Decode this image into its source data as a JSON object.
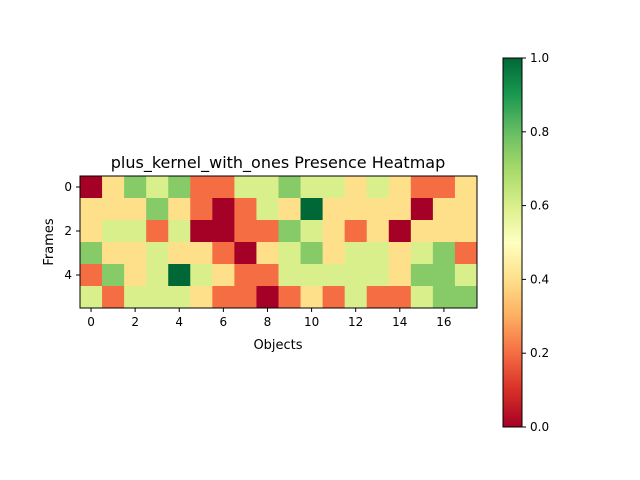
{
  "chart_data": {
    "type": "heatmap",
    "title": "plus_kernel_with_ones Presence Heatmap",
    "xlabel": "Objects",
    "ylabel": "Frames",
    "colormap": "RdYlGn",
    "x_ticks": [
      0,
      2,
      4,
      6,
      8,
      10,
      12,
      14,
      16
    ],
    "y_ticks": [
      0,
      2,
      4
    ],
    "colorbar": {
      "min": 0.0,
      "max": 1.0,
      "ticks": [
        "0.0",
        "0.2",
        "0.4",
        "0.6",
        "0.8",
        "1.0"
      ]
    },
    "values": [
      [
        0.0,
        0.4,
        0.75,
        0.6,
        0.75,
        0.2,
        0.2,
        0.6,
        0.6,
        0.75,
        0.6,
        0.6,
        0.4,
        0.6,
        0.4,
        0.2,
        0.2,
        0.4
      ],
      [
        0.4,
        0.4,
        0.4,
        0.75,
        0.4,
        0.2,
        0.0,
        0.2,
        0.6,
        0.4,
        1.0,
        0.4,
        0.4,
        0.4,
        0.4,
        0.0,
        0.4,
        0.4
      ],
      [
        0.4,
        0.6,
        0.6,
        0.2,
        0.6,
        0.0,
        0.0,
        0.2,
        0.2,
        0.75,
        0.6,
        0.4,
        0.2,
        0.4,
        0.0,
        0.4,
        0.4,
        0.4
      ],
      [
        0.75,
        0.4,
        0.4,
        0.6,
        0.4,
        0.4,
        0.2,
        0.0,
        0.4,
        0.6,
        0.75,
        0.4,
        0.6,
        0.6,
        0.4,
        0.6,
        0.75,
        0.2
      ],
      [
        0.2,
        0.75,
        0.4,
        0.6,
        1.0,
        0.6,
        0.4,
        0.2,
        0.2,
        0.6,
        0.6,
        0.6,
        0.6,
        0.6,
        0.4,
        0.75,
        0.75,
        0.6
      ],
      [
        0.6,
        0.2,
        0.6,
        0.6,
        0.6,
        0.4,
        0.2,
        0.2,
        0.0,
        0.2,
        0.4,
        0.2,
        0.6,
        0.2,
        0.2,
        0.6,
        0.75,
        0.75
      ]
    ]
  }
}
